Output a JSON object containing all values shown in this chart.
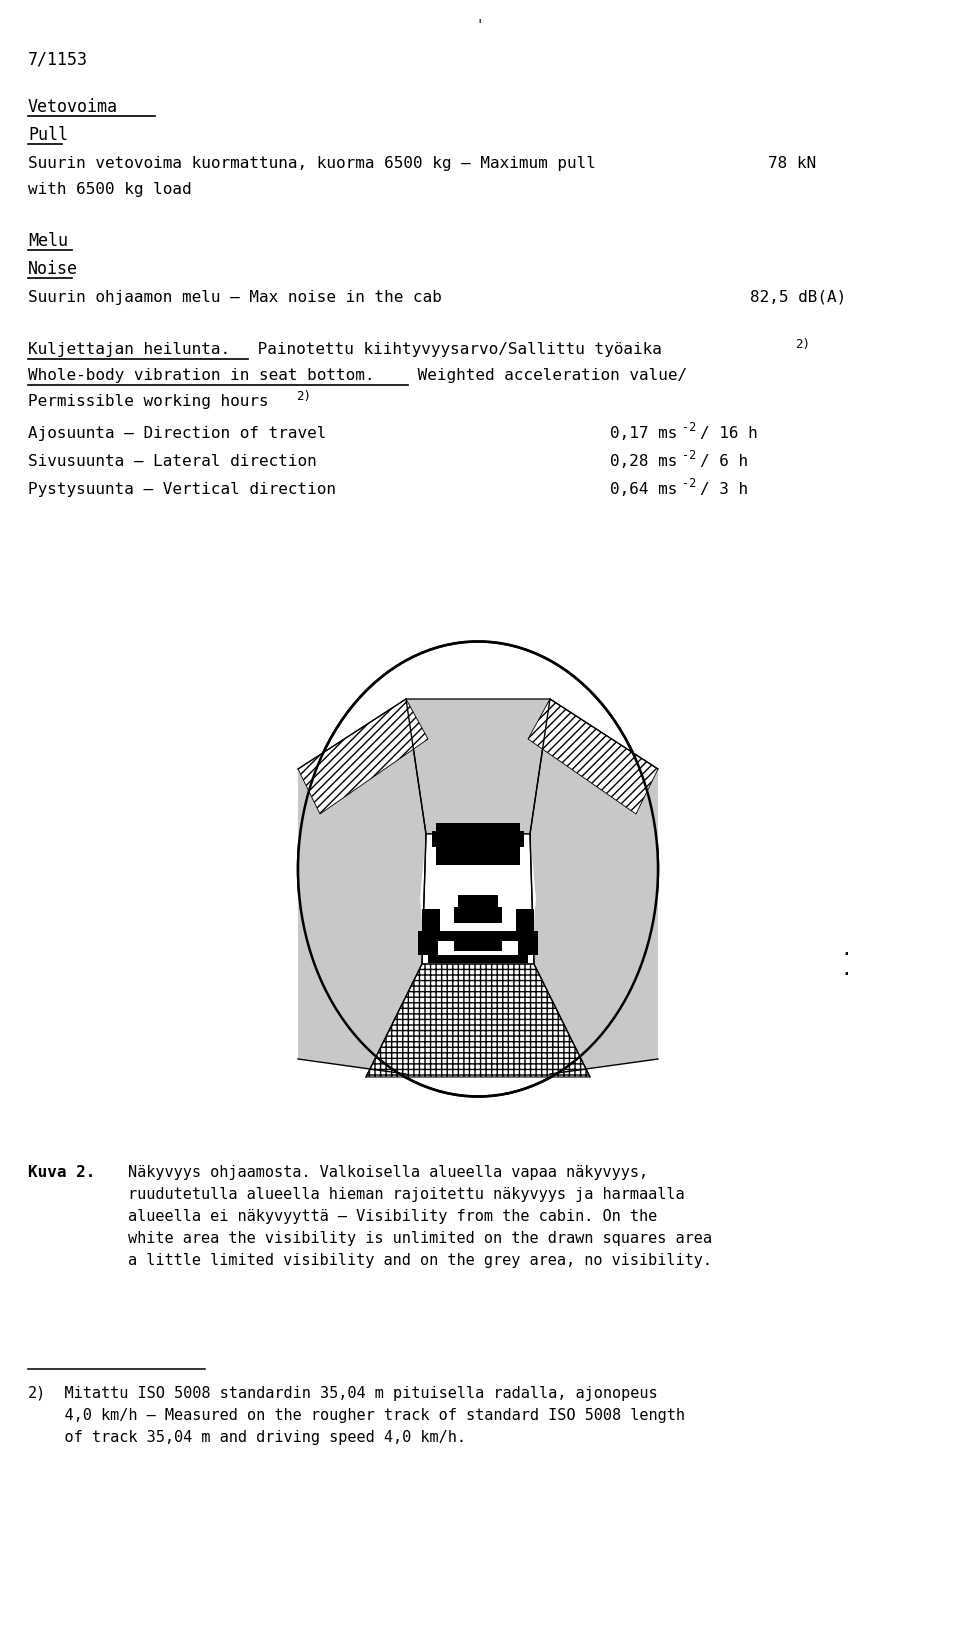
{
  "page_id": "7/1153",
  "section1_fi": "Vetovoima",
  "section1_en": "Pull",
  "pull_line1": "Suurin vetovoima kuormattuna, kuorma 6500 kg – Maximum pull",
  "pull_value": "78 kN",
  "pull_line2": "with 6500 kg load",
  "section2_fi": "Melu",
  "section2_en": "Noise",
  "noise_line": "Suurin ohjaamon melu – Max noise in the cab",
  "noise_value": "82,5 dB(A)",
  "vib_fi_a": "Kuljettajan heilunta.",
  "vib_fi_b": " Painotettu kiihtyvyysarvo/Sallittu työaika",
  "vib_fi_sup": "2)",
  "vib_en1a": "Whole-body vibration in seat bottom.",
  "vib_en1b": " Weighted acceleration value/",
  "vib_en2": "Permissible working hours",
  "vib_en2_sup": "2)",
  "row1_fi": "Ajosuunta – Direction of travel",
  "row1_val": "0,17 ms",
  "row1_sup": "-2",
  "row1_h": "/ 16 h",
  "row2_fi": "Sivusuunta – Lateral direction",
  "row2_val": "0,28 ms",
  "row2_sup": "-2",
  "row2_h": "/ 6 h",
  "row3_fi": "Pystysuunta – Vertical direction",
  "row3_val": "0,64 ms",
  "row3_sup": "-2",
  "row3_h": "/ 3 h",
  "caption_label": "Kuva 2.",
  "caption_line1": "Näkyvyys ohjaamosta. Valkoisella alueella vapaa näkyvyys,",
  "caption_line2": "ruudutetulla alueella hieman rajoitettu näkyvyys ja harmaalla",
  "caption_line3": "alueella ei näkyvyyttä – Visibility from the cabin. On the",
  "caption_line4": "white area the visibility is unlimited on the drawn squares area",
  "caption_line5": "a little limited visibility and on the grey area, no visibility.",
  "fn_num": "2)",
  "fn_line1": "    Mitattu ISO 5008 standardin 35,04 m pituisella radalla, ajonopeus",
  "fn_line2": "    4,0 km/h – Measured on the rougher track of standard ISO 5008 length",
  "fn_line3": "    of track 35,04 m and driving speed 4,0 km/h.",
  "bg": "#ffffff",
  "fg": "#000000",
  "gray": "#c8c8c8"
}
